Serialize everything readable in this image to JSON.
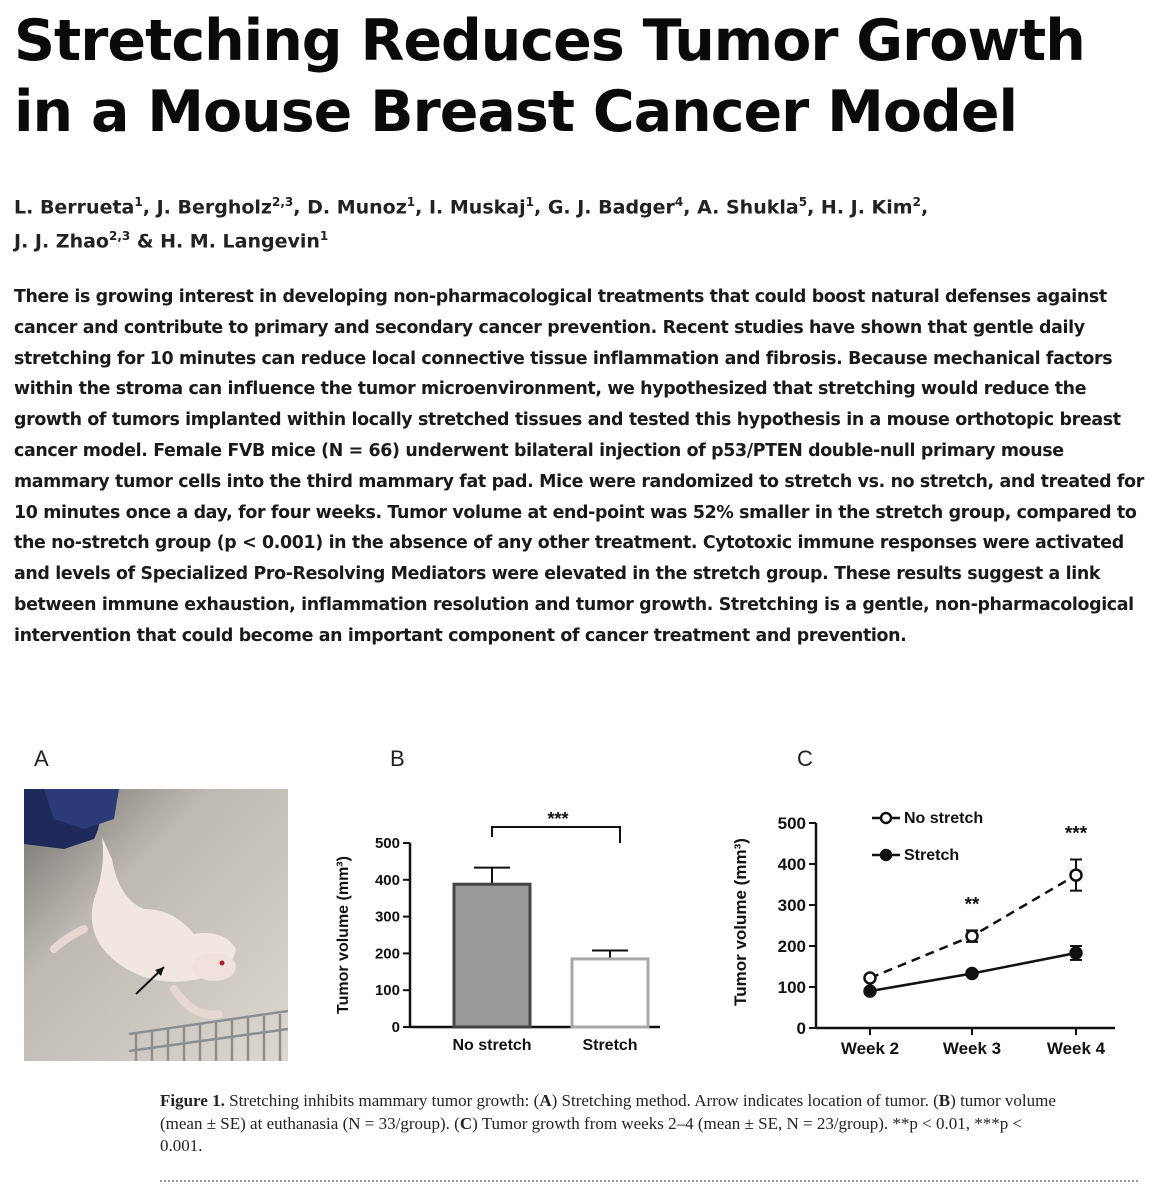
{
  "title": "Stretching Reduces Tumor Growth in a Mouse Breast Cancer Model",
  "authors": [
    {
      "name": "L. Berrueta",
      "aff": "1"
    },
    {
      "name": "J. Bergholz",
      "aff": "2,3"
    },
    {
      "name": "D. Munoz",
      "aff": "1"
    },
    {
      "name": "I. Muskaj",
      "aff": "1"
    },
    {
      "name": "G. J. Badger",
      "aff": "4"
    },
    {
      "name": "A. Shukla",
      "aff": "5"
    },
    {
      "name": "H. J. Kim",
      "aff": "2"
    },
    {
      "name": "J. J. Zhao",
      "aff": "2,3"
    },
    {
      "name": "H. M. Langevin",
      "aff": "1"
    }
  ],
  "abstract": "There is growing interest in developing non-pharmacological treatments that could boost natural defenses against cancer and contribute to primary and secondary cancer prevention. Recent studies have shown that gentle daily stretching for 10 minutes can reduce local connective tissue inflammation and fibrosis. Because mechanical factors within the stroma can influence the tumor microenvironment, we hypothesized that stretching would reduce the growth of tumors implanted within locally stretched tissues and tested this hypothesis in a mouse orthotopic breast cancer model. Female FVB mice (N = 66) underwent bilateral injection of p53/PTEN double-null primary mouse mammary tumor cells into the third mammary fat pad. Mice were randomized to stretch vs. no stretch, and treated for 10 minutes once a day, for four weeks. Tumor volume at end-point was 52% smaller in the stretch group, compared to the no-stretch group (p < 0.001) in the absence of any other treatment. Cytotoxic immune responses were activated and levels of Specialized Pro-Resolving Mediators were elevated in the stretch group. These results suggest a link between immune exhaustion, inflammation resolution and tumor growth. Stretching is a gentle, non-pharmacological intervention that could become an important component of cancer treatment and prevention.",
  "panels": {
    "a": "A",
    "b": "B",
    "c": "C"
  },
  "chart_data": [
    {
      "type": "bar",
      "panel": "B",
      "categories": [
        "No stretch",
        "Stretch"
      ],
      "values": [
        388,
        185
      ],
      "errors": [
        45,
        23
      ],
      "colors": [
        "#999999",
        "#ffffff"
      ],
      "ylabel": "Tumor volume (mm³)",
      "ylim": [
        0,
        500
      ],
      "yticks": [
        0,
        100,
        200,
        300,
        400,
        500
      ],
      "significance": "***"
    },
    {
      "type": "line",
      "panel": "C",
      "x": [
        "Week 2",
        "Week 3",
        "Week 4"
      ],
      "series": [
        {
          "name": "No stretch",
          "values": [
            122,
            224,
            373
          ],
          "errors": [
            6,
            14,
            38
          ],
          "marker": "open-circle",
          "line": "dashed"
        },
        {
          "name": "Stretch",
          "values": [
            90,
            133,
            183
          ],
          "errors": [
            5,
            6,
            17
          ],
          "marker": "filled-circle",
          "line": "solid"
        }
      ],
      "ylabel": "Tumor volume (mm³)",
      "ylim": [
        0,
        500
      ],
      "yticks": [
        0,
        100,
        200,
        300,
        400,
        500
      ],
      "significance": [
        "",
        "**",
        "***"
      ],
      "legend": "top-left"
    }
  ],
  "caption": {
    "label": "Figure 1.",
    "title": "Stretching inhibits mammary tumor growth:",
    "parts": [
      {
        "letter": "A",
        "text": "Stretching method. Arrow indicates location of tumor."
      },
      {
        "letter": "B",
        "text": "tumor volume (mean ± SE) at euthanasia (N = 33/group)."
      },
      {
        "letter": "C",
        "text": "Tumor growth from weeks 2–4 (mean ± SE, N = 23/group). **p < 0.01, ***p < 0.001."
      }
    ]
  }
}
